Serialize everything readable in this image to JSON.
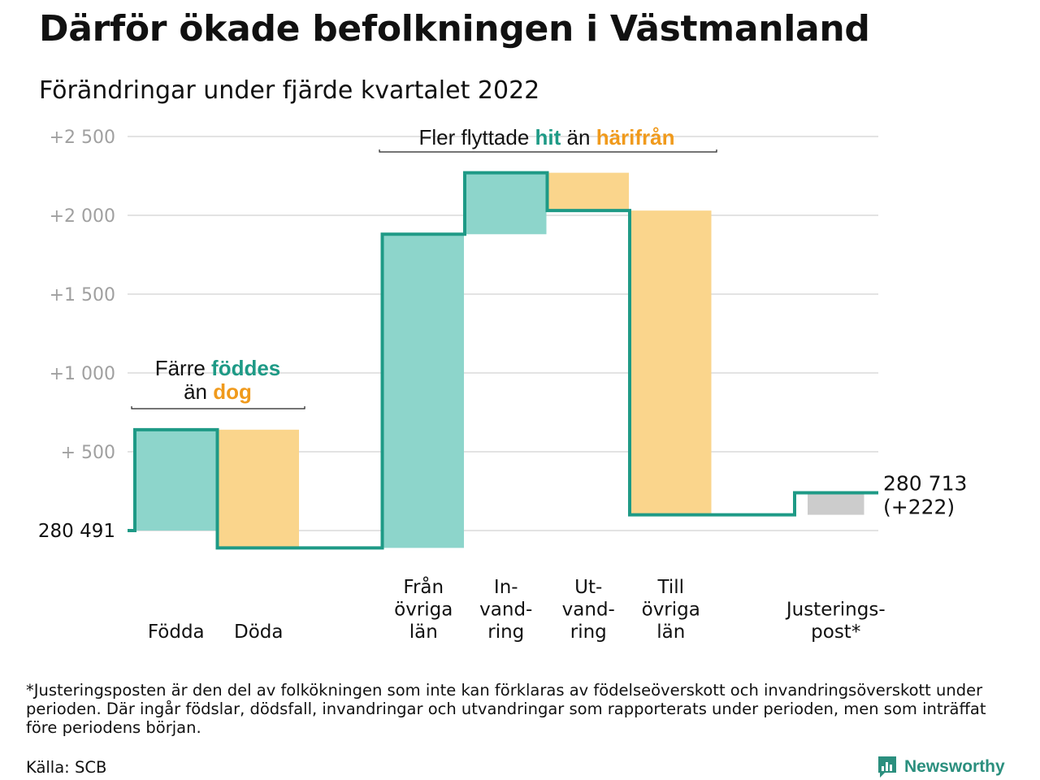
{
  "title": "Därför ökade befolkningen i Västmanland",
  "subtitle": "Förändringar under fjärde kvartalet 2022",
  "colors": {
    "teal_line": "#1e9a86",
    "teal_fill": "#8dd5cb",
    "orange_fill": "#fad58c",
    "orange_text": "#f09a1c",
    "teal_text": "#1e9a86",
    "gray_fill": "#cccccc",
    "grid": "#e3e3e3",
    "axis_text": "#a0a0a0"
  },
  "chart_data": {
    "type": "waterfall",
    "start_value": 280491,
    "start_label": "280 491",
    "end_value": 280713,
    "end_label": "280 713",
    "end_change_label": "(+222)",
    "ylim": [
      -100,
      2500
    ],
    "y_ticks": [
      {
        "value": 500,
        "label": "+ 500"
      },
      {
        "value": 1000,
        "label": "+1 000"
      },
      {
        "value": 1500,
        "label": "+1 500"
      },
      {
        "value": 2000,
        "label": "+2 000"
      },
      {
        "value": 2500,
        "label": "+2 500"
      }
    ],
    "grid": true,
    "steps": [
      {
        "category": "Födda",
        "label_lines": [
          "Födda"
        ],
        "change": 640,
        "kind": "in"
      },
      {
        "category": "Döda",
        "label_lines": [
          "Döda"
        ],
        "change": -750,
        "kind": "out"
      },
      {
        "category": "gap",
        "label_lines": [],
        "change": 0,
        "kind": "none"
      },
      {
        "category": "Från övriga län",
        "label_lines": [
          "Från",
          "övriga",
          "län"
        ],
        "change": 1990,
        "kind": "in"
      },
      {
        "category": "Invandring",
        "label_lines": [
          "In-",
          "vand-",
          "ring"
        ],
        "change": 390,
        "kind": "in"
      },
      {
        "category": "Utvandring",
        "label_lines": [
          "Ut-",
          "vand-",
          "ring"
        ],
        "change": -240,
        "kind": "out"
      },
      {
        "category": "Till övriga län",
        "label_lines": [
          "Till",
          "övriga",
          "län"
        ],
        "change": -1930,
        "kind": "out"
      },
      {
        "category": "gap",
        "label_lines": [],
        "change": 0,
        "kind": "none"
      },
      {
        "category": "Justeringspost*",
        "label_lines": [
          "Justerings-",
          "post*"
        ],
        "change": 140,
        "kind": "adjust"
      }
    ],
    "annotations": [
      {
        "lines": [
          [
            {
              "text": "Färre ",
              "style": "plain"
            },
            {
              "text": "föddes",
              "style": "teal"
            }
          ],
          [
            {
              "text": "än ",
              "style": "plain"
            },
            {
              "text": "dog",
              "style": "orange"
            }
          ]
        ]
      },
      {
        "lines": [
          [
            {
              "text": "Fler flyttade ",
              "style": "plain"
            },
            {
              "text": "hit",
              "style": "teal"
            },
            {
              "text": " än ",
              "style": "plain"
            },
            {
              "text": "härifrån",
              "style": "orange"
            }
          ]
        ]
      }
    ]
  },
  "footnote": "*Justeringsposten är den del av folkökningen som inte kan förklaras av födelseöverskott och invandringsöverskott under perioden. Där ingår födslar, dödsfall, invandringar och utvandringar som rapporterats under perioden, men som inträffat före periodens början.",
  "source": "Källa: SCB",
  "brand": {
    "name": "Newsworthy",
    "icon": "newsworthy-logo-icon"
  }
}
